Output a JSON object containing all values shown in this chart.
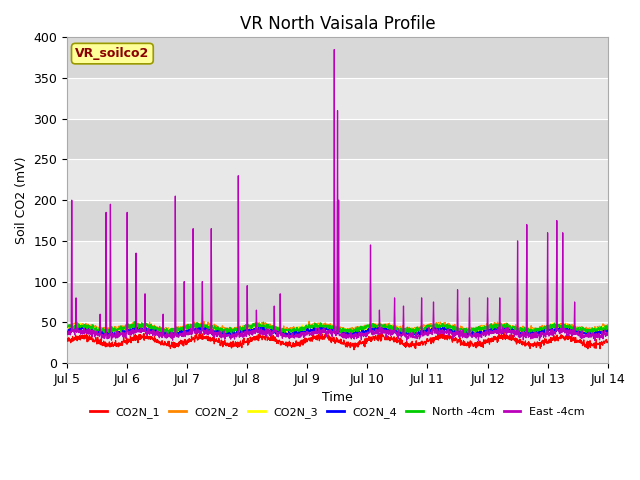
{
  "title": "VR North Vaisala Profile",
  "ylabel": "Soil CO2 (mV)",
  "xlabel": "Time",
  "annotation_text": "VR_soilco2",
  "annotation_color": "#8B0000",
  "annotation_bg": "#FFFF99",
  "annotation_border": "#999900",
  "ylim": [
    0,
    400
  ],
  "yticks": [
    0,
    50,
    100,
    150,
    200,
    250,
    300,
    350,
    400
  ],
  "xtick_labels": [
    "Jul 5",
    "Jul 6",
    "Jul 7",
    "Jul 8",
    "Jul 9",
    "Jul 10",
    "Jul 11",
    "Jul 12",
    "Jul 13",
    "Jul 14"
  ],
  "series_colors": {
    "CO2N_1": "#FF0000",
    "CO2N_2": "#FF8800",
    "CO2N_3": "#FFFF00",
    "CO2N_4": "#0000FF",
    "North -4cm": "#00CC00",
    "East -4cm": "#BB00BB"
  },
  "legend_labels": [
    "CO2N_1",
    "CO2N_2",
    "CO2N_3",
    "CO2N_4",
    "North -4cm",
    "East -4cm"
  ],
  "band_colors": [
    "#E8E8E8",
    "#D8D8D8"
  ],
  "fig_bg": "#FFFFFF",
  "title_fontsize": 12,
  "axis_fontsize": 9,
  "tick_fontsize": 9
}
